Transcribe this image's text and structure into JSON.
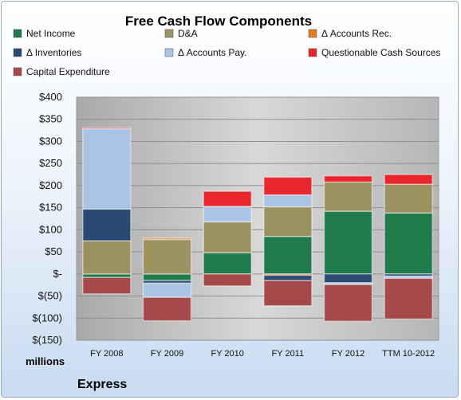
{
  "chart_data": {
    "type": "bar",
    "stacked": true,
    "title": "Free Cash Flow Components",
    "units_label": "millions",
    "company": "Express",
    "categories": [
      "FY 2008",
      "FY 2009",
      "FY 2010",
      "FY 2011",
      "FY 2012",
      "TTM 10-2012"
    ],
    "ylim": [
      -150,
      400
    ],
    "yticks": [
      400,
      350,
      300,
      250,
      200,
      150,
      100,
      50,
      0,
      -50,
      -100,
      -150
    ],
    "ytick_labels": [
      "$400",
      "$350",
      "$300",
      "$250",
      "$200",
      "$150",
      "$100",
      "$50",
      "$-",
      "$(50)",
      "$(100)",
      "$(150)"
    ],
    "grid": true,
    "legend_position": "top",
    "series": [
      {
        "name": "Net Income",
        "color": "#1f7a4c",
        "values": [
          -8,
          -15,
          48,
          85,
          142,
          138
        ]
      },
      {
        "name": "D&A",
        "color": "#9c9160",
        "values": [
          75,
          78,
          70,
          67,
          66,
          65
        ]
      },
      {
        "name": "Δ Accounts Rec.",
        "color": "#e07b1f",
        "values": [
          0,
          3,
          0,
          -3,
          0,
          0
        ]
      },
      {
        "name": "Δ Inventories",
        "color": "#2b4a72",
        "values": [
          72,
          -6,
          0,
          -12,
          -20,
          -5
        ]
      },
      {
        "name": "Δ Accounts Pay.",
        "color": "#a9c4e4",
        "values": [
          182,
          -32,
          35,
          27,
          -4,
          -5
        ]
      },
      {
        "name": "Questionable Cash Sources",
        "color": "#e8262b",
        "values": [
          2,
          0,
          34,
          40,
          14,
          22
        ]
      },
      {
        "name": "Capital Expenditure",
        "color": "#a5494a",
        "values": [
          -37,
          -53,
          -27,
          -57,
          -83,
          -92
        ]
      }
    ]
  }
}
